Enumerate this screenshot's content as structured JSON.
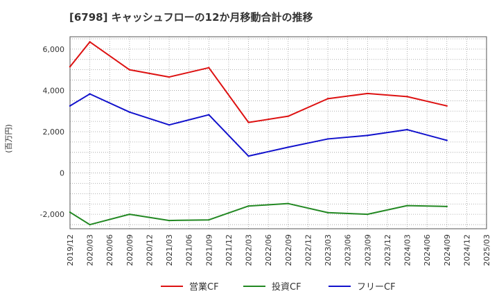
{
  "chart_data": {
    "type": "line",
    "title": "[6798]  キャッシュフローの12か月移動合計の推移",
    "ylabel": "(百万円)",
    "xlabel": "",
    "ylim": [
      -2700,
      6600
    ],
    "yticks": [
      -2000,
      0,
      2000,
      4000,
      6000
    ],
    "ytick_labels": [
      "-2,000",
      "0",
      "2,000",
      "4,000",
      "6,000"
    ],
    "categories": [
      "2019/12",
      "2020/03",
      "2020/06",
      "2020/09",
      "2020/12",
      "2021/03",
      "2021/06",
      "2021/09",
      "2021/12",
      "2022/03",
      "2022/06",
      "2022/09",
      "2022/12",
      "2023/03",
      "2023/06",
      "2023/09",
      "2023/12",
      "2024/03",
      "2024/06",
      "2024/09",
      "2024/12",
      "2025/03"
    ],
    "grid": true,
    "legend_position": "bottom",
    "series": [
      {
        "name": "営業CF",
        "color": "#dd1111",
        "values": [
          5150,
          6350,
          null,
          5000,
          null,
          4650,
          null,
          5100,
          null,
          2450,
          null,
          2750,
          null,
          3600,
          null,
          3850,
          null,
          3700,
          null,
          3250,
          null,
          null
        ]
      },
      {
        "name": "投資CF",
        "color": "#228822",
        "values": [
          -1900,
          -2500,
          null,
          -2000,
          null,
          -2300,
          null,
          -2270,
          null,
          -1600,
          null,
          -1480,
          null,
          -1920,
          null,
          -2000,
          null,
          -1580,
          null,
          -1620,
          null,
          null
        ]
      },
      {
        "name": "フリーCF",
        "color": "#1111cc",
        "values": [
          3250,
          3830,
          null,
          2950,
          null,
          2330,
          null,
          2820,
          null,
          820,
          null,
          1250,
          null,
          1650,
          null,
          1820,
          null,
          2100,
          null,
          1580,
          null,
          null
        ]
      }
    ]
  }
}
